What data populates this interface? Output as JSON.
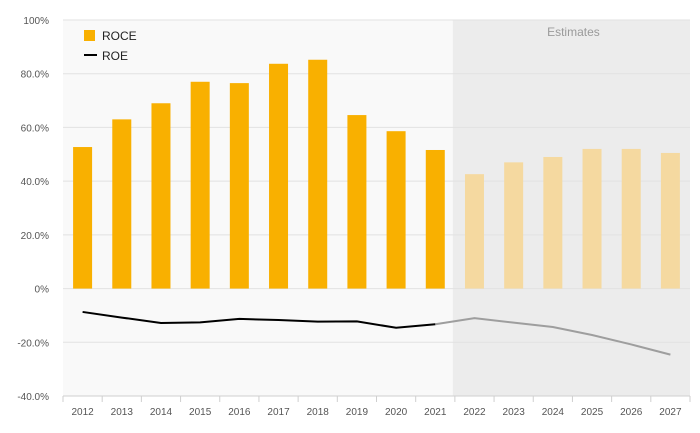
{
  "chart_data": {
    "type": "bar+line",
    "title": "",
    "xlabel": "",
    "ylabel": "",
    "categories": [
      "2012",
      "2013",
      "2014",
      "2015",
      "2016",
      "2017",
      "2018",
      "2019",
      "2020",
      "2021",
      "2022",
      "2023",
      "2024",
      "2025",
      "2026",
      "2027"
    ],
    "ylim": [
      -40,
      100
    ],
    "yticks": [
      -40,
      -20,
      0,
      20,
      40,
      60,
      80,
      100
    ],
    "ytick_labels": [
      "-40.0%",
      "-20.0%",
      "0%",
      "20.0%",
      "40.0%",
      "60.0%",
      "80.0%",
      "100%"
    ],
    "estimates_from": "2022",
    "estimates_label": "Estimates",
    "series": [
      {
        "name": "ROCE",
        "kind": "bar",
        "color": "#F9B000",
        "estimate_color": "#F5D9A0",
        "values": [
          52.7,
          63.0,
          69.0,
          77.0,
          76.5,
          83.7,
          85.2,
          64.6,
          58.6,
          51.6,
          42.6,
          47.0,
          49.0,
          52.0,
          52.0,
          50.5
        ]
      },
      {
        "name": "ROE",
        "kind": "line",
        "color": "#000000",
        "estimate_color": "#9e9e9e",
        "values": [
          -8.7,
          -10.8,
          -12.8,
          -12.6,
          -11.3,
          -11.7,
          -12.3,
          -12.2,
          -14.6,
          -13.3,
          -11.0,
          -12.7,
          -14.3,
          -17.3,
          -20.8,
          -24.6
        ]
      }
    ]
  }
}
